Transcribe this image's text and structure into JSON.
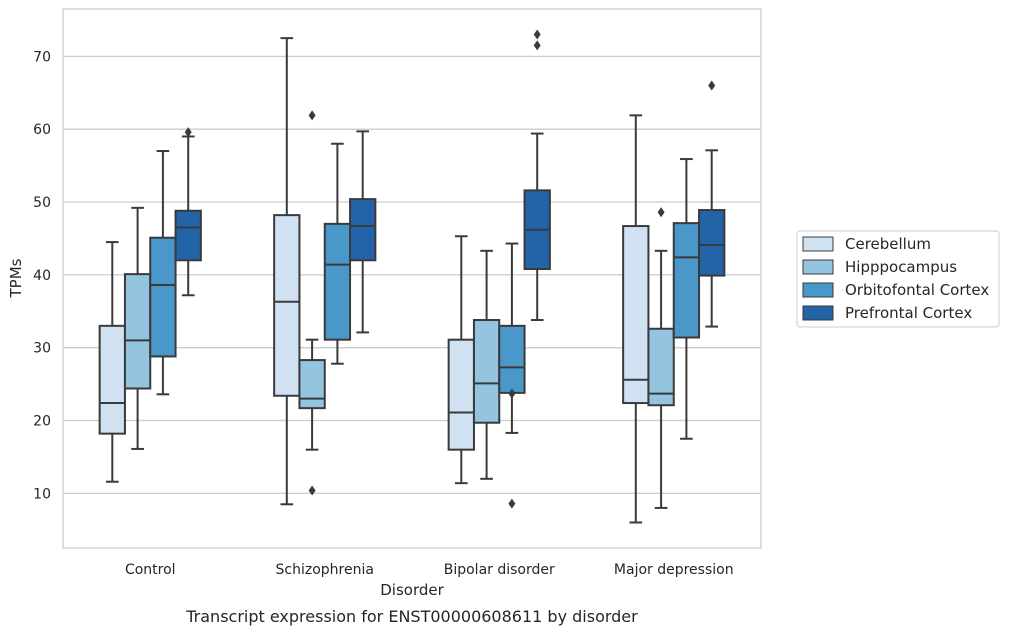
{
  "chart_data": {
    "type": "box",
    "title": "",
    "caption": "Transcript expression for ENST00000608611 by disorder",
    "xlabel": "Disorder",
    "ylabel": "TPMs",
    "ylim": [
      2.5,
      76.5
    ],
    "yticks": [
      "10",
      "20",
      "30",
      "40",
      "50",
      "60",
      "70"
    ],
    "grid": "horizontal",
    "legend_position": "right",
    "categories": [
      "Control",
      "Schizophrenia",
      "Bipolar disorder",
      "Major depression"
    ],
    "series": [
      {
        "name": "Cerebellum",
        "color": "#d0e1f2",
        "boxes": [
          {
            "whislo": 11.6,
            "q1": 18.2,
            "med": 22.4,
            "q3": 33.0,
            "whishi": 44.5,
            "fliers": []
          },
          {
            "whislo": 8.5,
            "q1": 23.4,
            "med": 36.3,
            "q3": 48.2,
            "whishi": 72.5,
            "fliers": []
          },
          {
            "whislo": 11.4,
            "q1": 16.0,
            "med": 21.1,
            "q3": 31.1,
            "whishi": 45.3,
            "fliers": []
          },
          {
            "whislo": 6.0,
            "q1": 22.4,
            "med": 25.6,
            "q3": 46.7,
            "whishi": 61.9,
            "fliers": []
          }
        ]
      },
      {
        "name": "Hipppocampus",
        "color": "#94c4df",
        "boxes": [
          {
            "whislo": 16.1,
            "q1": 24.4,
            "med": 31.0,
            "q3": 40.1,
            "whishi": 49.2,
            "fliers": []
          },
          {
            "whislo": 16.0,
            "q1": 21.7,
            "med": 23.0,
            "q3": 28.3,
            "whishi": 31.1,
            "fliers": [
              10.4,
              61.9
            ]
          },
          {
            "whislo": 12.0,
            "q1": 19.7,
            "med": 25.1,
            "q3": 33.8,
            "whishi": 43.3,
            "fliers": []
          },
          {
            "whislo": 8.0,
            "q1": 22.1,
            "med": 23.7,
            "q3": 32.6,
            "whishi": 43.3,
            "fliers": [
              48.6
            ]
          }
        ]
      },
      {
        "name": "Orbitofontal Cortex",
        "color": "#4a98c9",
        "boxes": [
          {
            "whislo": 23.6,
            "q1": 28.8,
            "med": 38.6,
            "q3": 45.1,
            "whishi": 57.0,
            "fliers": []
          },
          {
            "whislo": 27.8,
            "q1": 31.1,
            "med": 41.4,
            "q3": 47.0,
            "whishi": 58.0,
            "fliers": []
          },
          {
            "whislo": 18.3,
            "q1": 23.8,
            "med": 27.3,
            "q3": 33.0,
            "whishi": 44.3,
            "fliers": [
              8.6,
              23.7
            ]
          },
          {
            "whislo": 17.5,
            "q1": 31.4,
            "med": 42.4,
            "q3": 47.1,
            "whishi": 55.9,
            "fliers": []
          }
        ]
      },
      {
        "name": "Prefrontal Cortex",
        "color": "#2363a8",
        "boxes": [
          {
            "whislo": 37.2,
            "q1": 42.0,
            "med": 46.5,
            "q3": 48.8,
            "whishi": 59.0,
            "fliers": [
              59.6
            ]
          },
          {
            "whislo": 32.1,
            "q1": 42.0,
            "med": 46.7,
            "q3": 50.4,
            "whishi": 59.7,
            "fliers": []
          },
          {
            "whislo": 33.8,
            "q1": 40.8,
            "med": 46.2,
            "q3": 51.6,
            "whishi": 59.4,
            "fliers": [
              71.5,
              73.0
            ]
          },
          {
            "whislo": 32.9,
            "q1": 39.9,
            "med": 44.1,
            "q3": 48.9,
            "whishi": 57.1,
            "fliers": [
              66.0
            ]
          }
        ]
      }
    ]
  }
}
